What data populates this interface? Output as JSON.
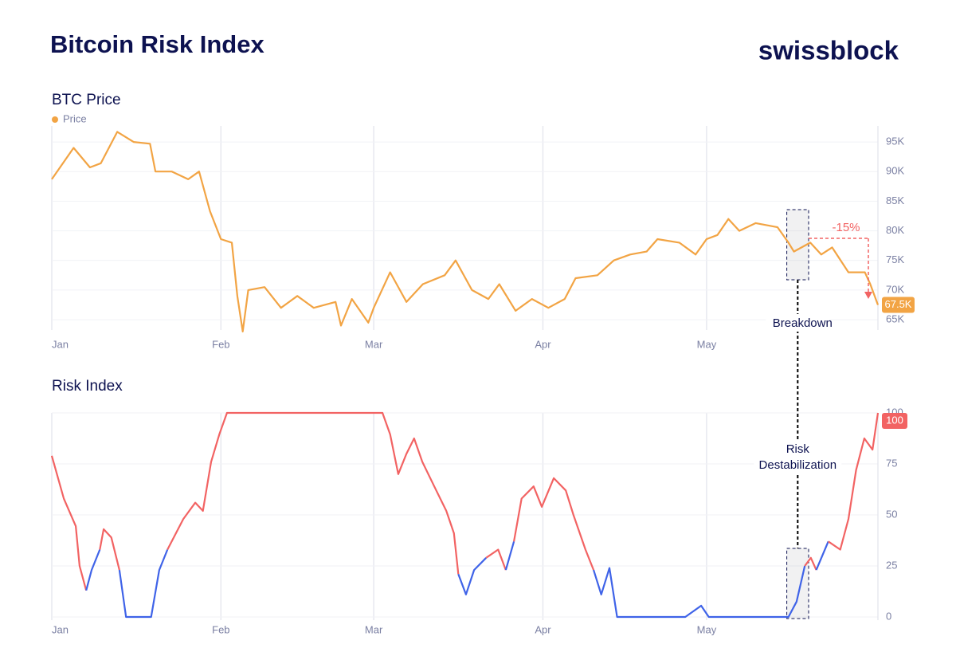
{
  "title": "Bitcoin Risk Index",
  "brand": "swissblock",
  "chart_data": [
    {
      "type": "line",
      "title": "BTC Price",
      "legend": "top-left",
      "grid": true,
      "x": [
        0,
        4,
        7,
        9,
        12,
        15,
        18,
        19,
        22,
        25,
        27,
        29,
        31,
        33,
        34,
        35,
        36,
        39,
        42,
        45,
        48,
        52,
        53,
        55,
        58,
        59,
        62,
        65,
        68,
        72,
        74,
        77,
        80,
        82,
        85,
        88,
        91,
        94,
        96,
        100,
        103,
        106,
        109,
        111,
        115,
        118,
        120,
        122,
        124,
        126,
        129,
        133,
        135,
        136,
        139,
        141,
        143,
        146,
        149,
        150,
        151.4
      ],
      "series": [
        {
          "name": "Price",
          "color": "#f2a444",
          "values": [
            88700,
            94000,
            90700,
            91400,
            96700,
            95000,
            94700,
            90000,
            90000,
            88700,
            90000,
            83300,
            78600,
            78000,
            69000,
            63000,
            70000,
            70500,
            67000,
            69000,
            67000,
            68000,
            64000,
            68500,
            64500,
            67000,
            73000,
            68000,
            71000,
            72500,
            75000,
            70000,
            68500,
            71000,
            66500,
            68500,
            67000,
            68500,
            72000,
            72500,
            75000,
            76000,
            76500,
            78600,
            78000,
            76000,
            78600,
            79300,
            82000,
            80000,
            81300,
            80600,
            78000,
            76500,
            78000,
            76000,
            77200,
            73000,
            73000,
            71000,
            67500
          ]
        }
      ],
      "end_label": {
        "value": 67500,
        "label": "67.5K"
      },
      "drop": {
        "value": -15,
        "label": "-15%"
      },
      "highlight": [
        134.7,
        138.7
      ],
      "highlight_label": "Breakdown",
      "xlim": [
        0,
        151.4
      ],
      "xticks": [
        {
          "value": 0,
          "label": "Jan"
        },
        {
          "value": 31,
          "label": "Feb"
        },
        {
          "value": 59,
          "label": "Mar"
        },
        {
          "value": 90,
          "label": "Apr"
        },
        {
          "value": 120,
          "label": "May"
        }
      ],
      "ylim": [
        63800,
        97700
      ],
      "yticks": [
        {
          "value": 65000,
          "label": "65K"
        },
        {
          "value": 70000,
          "label": "70K"
        },
        {
          "value": 75000,
          "label": "75K"
        },
        {
          "value": 80000,
          "label": "80K"
        },
        {
          "value": 85000,
          "label": "85K"
        },
        {
          "value": 90000,
          "label": "90K"
        },
        {
          "value": 95000,
          "label": "95K"
        }
      ]
    },
    {
      "type": "line",
      "title": "Risk Index",
      "grid": true,
      "x": [
        0,
        2.2,
        4.4,
        5.1,
        6.3,
        7.3,
        8.8,
        9.5,
        10.9,
        12.4,
        13.6,
        16.1,
        18.2,
        19.7,
        21.2,
        24.1,
        26.3,
        27.7,
        29.2,
        30.7,
        32.1,
        60.6,
        62.0,
        63.5,
        65.0,
        66.4,
        67.9,
        70.1,
        72.3,
        73.7,
        74.5,
        75.9,
        77.4,
        79.6,
        81.8,
        83.2,
        84.7,
        86.1,
        88.3,
        89.8,
        92.0,
        94.2,
        95.6,
        97.8,
        99.3,
        100.7,
        102.2,
        103.6,
        116.1,
        119.0,
        120.4,
        135.0,
        136.5,
        138.0,
        139.1,
        140.1,
        142.3,
        144.5,
        146.0,
        147.4,
        148.9,
        150.4,
        151.4
      ],
      "series": [
        {
          "name": "Risk Index",
          "color": "#f26363",
          "low_color": "#3f63e8",
          "color_threshold": 25,
          "values": [
            79,
            58,
            44.5,
            25,
            13,
            23,
            33,
            43,
            39,
            23,
            0,
            0,
            0,
            23,
            33,
            48,
            56,
            52,
            76,
            89.5,
            100,
            100,
            89.5,
            70,
            80,
            87.5,
            76,
            64,
            52,
            41,
            21,
            11,
            23,
            29,
            33,
            23,
            37,
            58,
            64,
            54,
            68,
            62,
            50,
            33,
            23,
            11,
            24,
            0,
            0,
            5.5,
            0,
            0,
            7.5,
            25,
            29,
            23,
            37,
            33,
            48,
            72,
            87.5,
            82,
            100
          ]
        }
      ],
      "highlight": [
        134.7,
        138.7
      ],
      "highlight_label": "Risk Destabilization",
      "xlim": [
        0,
        151.4
      ],
      "xticks": [
        {
          "value": 0,
          "label": "Jan"
        },
        {
          "value": 31,
          "label": "Feb"
        },
        {
          "value": 59,
          "label": "Mar"
        },
        {
          "value": 90,
          "label": "Apr"
        },
        {
          "value": 120,
          "label": "May"
        }
      ],
      "ylim": [
        0,
        100
      ],
      "yticks": [
        0,
        25,
        50,
        75,
        100
      ]
    }
  ]
}
